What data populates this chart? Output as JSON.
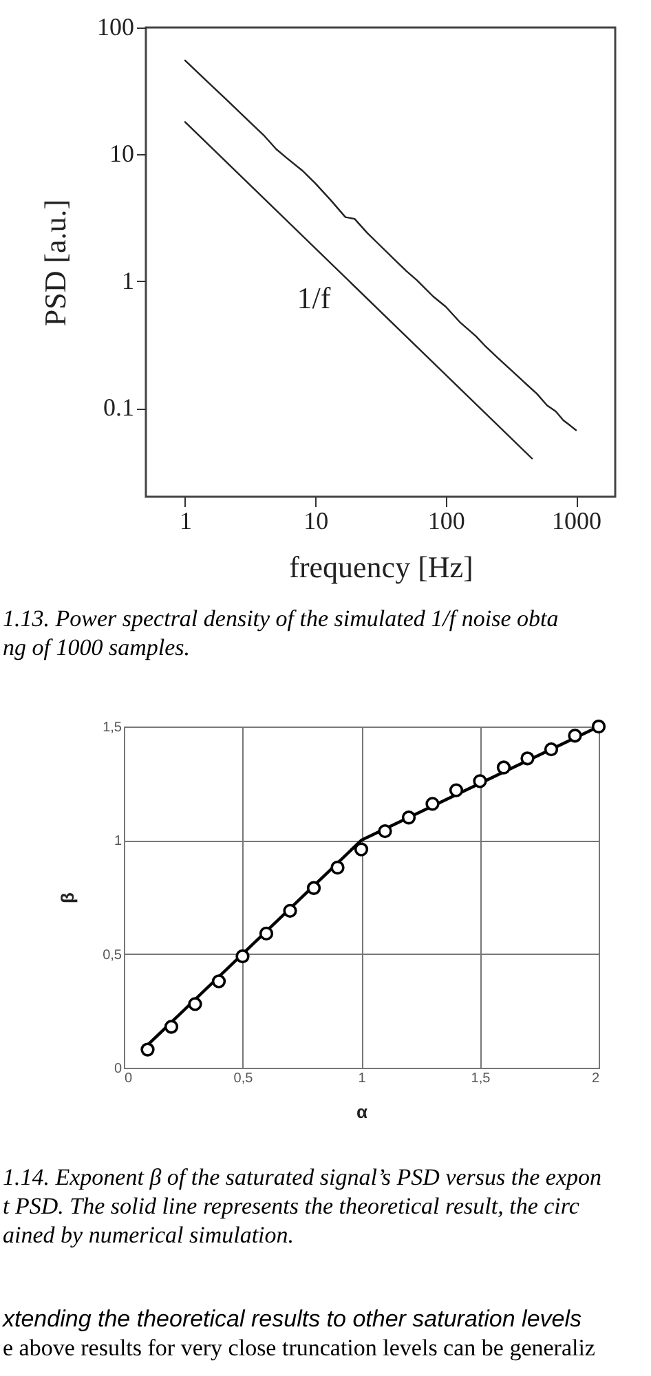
{
  "chart_data": [
    {
      "type": "line",
      "xlabel": "frequency [Hz]",
      "ylabel": "PSD [a.u.]",
      "log": "xy",
      "xlim": [
        0.5,
        2000
      ],
      "xticks": [
        1,
        10,
        100,
        1000
      ],
      "ylim": [
        0.02,
        100
      ],
      "yticks": [
        0.1,
        1,
        10,
        100
      ],
      "series": [
        {
          "color": "#222222",
          "x": [
            1,
            1.5,
            2,
            3,
            4,
            5,
            6,
            8,
            10,
            13,
            17,
            20,
            25,
            30,
            40,
            50,
            60,
            80,
            100,
            130,
            170,
            200,
            250,
            300,
            400,
            500,
            600,
            700,
            800,
            900,
            1000
          ],
          "values": [
            55,
            37,
            28,
            18.8,
            14.2,
            11,
            9.4,
            7.4,
            5.9,
            4.4,
            3.2,
            3.1,
            2.4,
            2.0,
            1.5,
            1.2,
            1.02,
            0.76,
            0.63,
            0.47,
            0.37,
            0.31,
            0.25,
            0.21,
            0.16,
            0.13,
            0.105,
            0.094,
            0.08,
            0.073,
            0.067
          ]
        },
        {
          "color": "#222222",
          "x": [
            1,
            460
          ],
          "values": [
            18,
            0.04
          ]
        }
      ],
      "annotations": [
        "1/f",
        "1.13. Power spectral density of the simulated 1/f noise obta",
        "ng of 1000 samples."
      ]
    },
    {
      "type": "scatter",
      "xlabel": "α",
      "ylabel": "β",
      "grid": true,
      "xlim": [
        0,
        2
      ],
      "xticks": [
        0,
        {
          "value": 0.5,
          "label": "0,5"
        },
        1,
        {
          "value": 1.5,
          "label": "1,5"
        },
        2
      ],
      "ylim": [
        0,
        1.5
      ],
      "yticks": [
        0,
        {
          "value": 0.5,
          "label": "0,5"
        },
        1,
        {
          "value": 1.5,
          "label": "1,5"
        }
      ],
      "series": [
        {
          "type": "line",
          "color": "#000000",
          "x": [
            0.1,
            1,
            2
          ],
          "values": [
            0.1,
            1,
            1.5
          ]
        },
        {
          "marker": "circle",
          "color": "#000000",
          "x": [
            0.1,
            0.2,
            0.3,
            0.4,
            0.5,
            0.6,
            0.7,
            0.8,
            0.9,
            1.0,
            1.1,
            1.2,
            1.3,
            1.4,
            1.5,
            1.6,
            1.7,
            1.8,
            1.9,
            2.0
          ],
          "values": [
            0.08,
            0.18,
            0.28,
            0.38,
            0.49,
            0.59,
            0.69,
            0.79,
            0.88,
            0.96,
            1.04,
            1.1,
            1.16,
            1.22,
            1.26,
            1.32,
            1.36,
            1.4,
            1.46,
            1.5
          ]
        }
      ],
      "annotations": [
        "1.14. Exponent β of the saturated signal’s PSD versus the expon",
        "t PSD. The solid line represents the theoretical result, the circ",
        "ained by numerical simulation.",
        "xtending the theoretical results to other saturation levels",
        "e above results for very close truncation levels can be generaliz"
      ]
    }
  ]
}
